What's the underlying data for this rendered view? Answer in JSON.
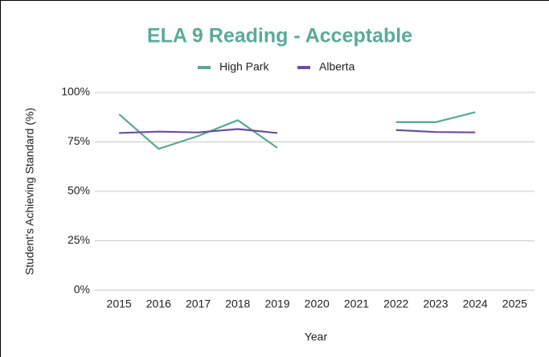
{
  "chart_data": {
    "type": "line",
    "title": "ELA 9 Reading - Acceptable",
    "x_label": "Year",
    "y_label": "Student's Achieving Standard (%)",
    "categories": [
      "2015",
      "2016",
      "2017",
      "2018",
      "2019",
      "2020",
      "2021",
      "2022",
      "2023",
      "2024",
      "2025"
    ],
    "series": [
      {
        "name": "High Park",
        "color": "#5aa895",
        "values": [
          89,
          71.5,
          78,
          86,
          72,
          null,
          null,
          85,
          85,
          90,
          null
        ]
      },
      {
        "name": "Alberta",
        "color": "#6a4ea3",
        "values": [
          79.5,
          80.2,
          79.8,
          81.5,
          79.5,
          null,
          null,
          81,
          80,
          79.8,
          null
        ]
      }
    ],
    "ylim": [
      0,
      100
    ],
    "yticks": [
      {
        "value": 0,
        "label": "0%"
      },
      {
        "value": 25,
        "label": "25%"
      },
      {
        "value": 50,
        "label": "50%"
      },
      {
        "value": 75,
        "label": "75%"
      },
      {
        "value": 100,
        "label": "100%"
      }
    ],
    "grid": true,
    "legend": "top"
  }
}
